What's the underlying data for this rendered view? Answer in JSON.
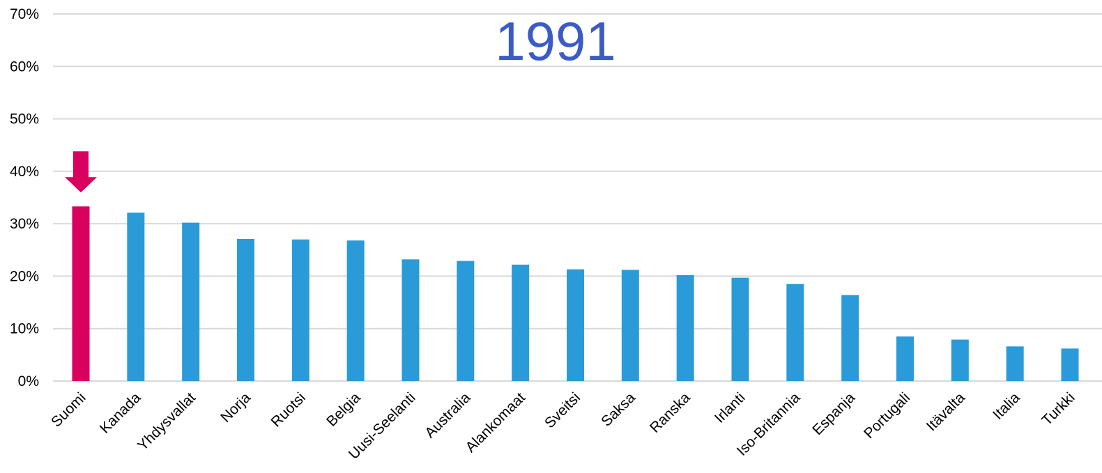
{
  "chart_data": {
    "type": "bar",
    "title": "1991",
    "xlabel": "",
    "ylabel": "",
    "categories": [
      "Suomi",
      "Kanada",
      "Yhdysvallat",
      "Norja",
      "Ruotsi",
      "Belgia",
      "Uusi-Seelanti",
      "Australia",
      "Alankomaat",
      "Sveitsi",
      "Saksa",
      "Ranska",
      "Irlanti",
      "Iso-Britannia",
      "Espanja",
      "Portugali",
      "Itävalta",
      "Italia",
      "Turkki"
    ],
    "values": [
      0.333,
      0.321,
      0.302,
      0.271,
      0.27,
      0.268,
      0.232,
      0.229,
      0.222,
      0.213,
      0.212,
      0.202,
      0.197,
      0.185,
      0.164,
      0.085,
      0.079,
      0.066,
      0.062
    ],
    "ylim": [
      0,
      0.7
    ],
    "yticks": [
      "0%",
      "10%",
      "20%",
      "30%",
      "40%",
      "50%",
      "60%",
      "70%"
    ],
    "grid": true,
    "highlight_category": "Suomi",
    "annotations": [
      "arrow pointing down at Suomi"
    ],
    "colors": {
      "bar": "#2a9bd8",
      "highlight": "#d9005f",
      "title": "#3b5bc5",
      "grid": "#d9d9d9"
    }
  }
}
